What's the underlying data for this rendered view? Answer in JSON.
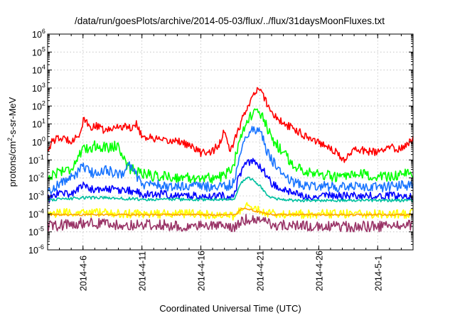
{
  "chart_data": {
    "type": "line",
    "title": "/data/run/goesPlots/archive/2014-05-03/flux/../flux/31daysMoonFluxes.txt",
    "xlabel": "Coordinated Universal Time (UTC)",
    "ylabel_prefix": "protons/cm",
    "ylabel_sup": "2",
    "ylabel_suffix": "-s-sr-MeV",
    "yscale": "log",
    "ylim_exp": [
      -6,
      6
    ],
    "xlim_days": [
      0,
      31
    ],
    "grid": true,
    "y_ticks": [
      {
        "base": "10",
        "exp": "6",
        "value_exp": 6
      },
      {
        "base": "10",
        "exp": "5",
        "value_exp": 5
      },
      {
        "base": "10",
        "exp": "4",
        "value_exp": 4
      },
      {
        "base": "10",
        "exp": "3",
        "value_exp": 3
      },
      {
        "base": "10",
        "exp": "2",
        "value_exp": 2
      },
      {
        "base": "10",
        "exp": "1",
        "value_exp": 1
      },
      {
        "base": "10",
        "exp": "0",
        "value_exp": 0
      },
      {
        "base": "10",
        "exp": "-1",
        "value_exp": -1
      },
      {
        "base": "10",
        "exp": "-2",
        "value_exp": -2
      },
      {
        "base": "10",
        "exp": "-3",
        "value_exp": -3
      },
      {
        "base": "10",
        "exp": "-4",
        "value_exp": -4
      },
      {
        "base": "10",
        "exp": "-5",
        "value_exp": -5
      },
      {
        "base": "10",
        "exp": "-6",
        "value_exp": -6
      }
    ],
    "x_ticks": [
      {
        "label": "2014-4-6",
        "day": 3
      },
      {
        "label": "2014-4-11",
        "day": 8
      },
      {
        "label": "2014-4-16",
        "day": 13
      },
      {
        "label": "2014-4-21",
        "day": 18
      },
      {
        "label": "2014-4-26",
        "day": 23
      },
      {
        "label": "2014-5-1",
        "day": 28
      }
    ],
    "series": [
      {
        "name": "red",
        "color": "#ff0000",
        "noise": 0.22,
        "points": [
          [
            0,
            -0.4
          ],
          [
            0.5,
            0.1
          ],
          [
            1,
            0.2
          ],
          [
            2,
            0.1
          ],
          [
            2.7,
            0.4
          ],
          [
            3.1,
            1.3
          ],
          [
            3.5,
            0.8
          ],
          [
            4,
            0.9
          ],
          [
            5,
            0.6
          ],
          [
            6,
            0.9
          ],
          [
            7,
            0.8
          ],
          [
            7.6,
            1.0
          ],
          [
            8,
            0.3
          ],
          [
            9,
            0.2
          ],
          [
            10,
            0.0
          ],
          [
            11,
            0.1
          ],
          [
            12,
            -0.2
          ],
          [
            13,
            -0.6
          ],
          [
            14,
            -0.5
          ],
          [
            14.6,
            -0.1
          ],
          [
            15,
            0.6
          ],
          [
            15.3,
            -0.2
          ],
          [
            15.6,
            -0.5
          ],
          [
            16,
            0.4
          ],
          [
            16.4,
            1.0
          ],
          [
            16.8,
            1.8
          ],
          [
            17.2,
            2.3
          ],
          [
            17.6,
            2.7
          ],
          [
            18,
            2.95
          ],
          [
            18.3,
            2.6
          ],
          [
            18.7,
            2.0
          ],
          [
            19.2,
            1.5
          ],
          [
            20,
            1.0
          ],
          [
            21,
            0.7
          ],
          [
            22,
            0.3
          ],
          [
            23,
            0.0
          ],
          [
            24,
            -0.3
          ],
          [
            24.8,
            -0.8
          ],
          [
            25.2,
            -1.1
          ],
          [
            25.6,
            -0.6
          ],
          [
            26,
            -0.4
          ],
          [
            27,
            -0.5
          ],
          [
            28,
            -0.6
          ],
          [
            29,
            -0.3
          ],
          [
            30,
            -0.4
          ],
          [
            31,
            0.2
          ]
        ]
      },
      {
        "name": "green",
        "color": "#00ff00",
        "noise": 0.3,
        "points": [
          [
            0,
            -2.0
          ],
          [
            1,
            -1.6
          ],
          [
            2,
            -1.5
          ],
          [
            2.6,
            -0.8
          ],
          [
            3,
            -0.5
          ],
          [
            4,
            -0.2
          ],
          [
            5,
            -0.3
          ],
          [
            6,
            -0.2
          ],
          [
            6.5,
            -1.0
          ],
          [
            7,
            -1.5
          ],
          [
            8,
            -1.7
          ],
          [
            9,
            -1.9
          ],
          [
            10,
            -1.9
          ],
          [
            11,
            -2.0
          ],
          [
            12,
            -2.0
          ],
          [
            13,
            -2.0
          ],
          [
            14,
            -2.0
          ],
          [
            15,
            -1.9
          ],
          [
            15.8,
            -1.3
          ],
          [
            16.2,
            0.0
          ],
          [
            16.6,
            0.8
          ],
          [
            17,
            1.2
          ],
          [
            17.4,
            1.6
          ],
          [
            17.8,
            1.65
          ],
          [
            18.2,
            1.4
          ],
          [
            18.6,
            0.8
          ],
          [
            19,
            0.2
          ],
          [
            20,
            -0.6
          ],
          [
            21,
            -1.4
          ],
          [
            22,
            -1.6
          ],
          [
            23,
            -1.8
          ],
          [
            24,
            -1.9
          ],
          [
            25,
            -2.0
          ],
          [
            26,
            -1.9
          ],
          [
            27,
            -1.8
          ],
          [
            28,
            -2.0
          ],
          [
            29,
            -1.9
          ],
          [
            30,
            -1.8
          ],
          [
            31,
            -1.8
          ]
        ]
      },
      {
        "name": "blue",
        "color": "#1874ff",
        "noise": 0.28,
        "points": [
          [
            0,
            -2.8
          ],
          [
            1,
            -2.3
          ],
          [
            2,
            -2.0
          ],
          [
            3,
            -1.4
          ],
          [
            4,
            -1.8
          ],
          [
            5,
            -1.5
          ],
          [
            6,
            -1.9
          ],
          [
            7,
            -1.3
          ],
          [
            7.5,
            -1.8
          ],
          [
            8,
            -2.4
          ],
          [
            9,
            -2.3
          ],
          [
            10,
            -2.5
          ],
          [
            11,
            -2.5
          ],
          [
            12,
            -2.4
          ],
          [
            13,
            -2.5
          ],
          [
            14,
            -2.5
          ],
          [
            15,
            -2.5
          ],
          [
            15.8,
            -2.3
          ],
          [
            16.2,
            -1.0
          ],
          [
            16.6,
            0.0
          ],
          [
            17,
            0.5
          ],
          [
            17.4,
            0.75
          ],
          [
            17.8,
            0.7
          ],
          [
            18.2,
            0.3
          ],
          [
            18.6,
            -0.5
          ],
          [
            19,
            -1.0
          ],
          [
            20,
            -1.8
          ],
          [
            21,
            -2.3
          ],
          [
            22,
            -2.4
          ],
          [
            23,
            -2.4
          ],
          [
            24,
            -2.5
          ],
          [
            25,
            -2.5
          ],
          [
            26,
            -2.5
          ],
          [
            27,
            -2.5
          ],
          [
            28,
            -2.5
          ],
          [
            29,
            -2.5
          ],
          [
            30,
            -2.4
          ],
          [
            31,
            -2.4
          ]
        ]
      },
      {
        "name": "darkblue",
        "color": "#0000ff",
        "noise": 0.22,
        "points": [
          [
            0,
            -3.2
          ],
          [
            1,
            -2.8
          ],
          [
            2,
            -2.9
          ],
          [
            3,
            -2.4
          ],
          [
            4,
            -2.7
          ],
          [
            5,
            -2.6
          ],
          [
            6,
            -2.7
          ],
          [
            7,
            -2.7
          ],
          [
            8,
            -2.9
          ],
          [
            9,
            -2.9
          ],
          [
            10,
            -2.9
          ],
          [
            11,
            -3.0
          ],
          [
            12,
            -3.0
          ],
          [
            13,
            -3.0
          ],
          [
            14,
            -3.0
          ],
          [
            15,
            -3.0
          ],
          [
            15.8,
            -3.0
          ],
          [
            16.2,
            -2.0
          ],
          [
            16.6,
            -1.4
          ],
          [
            17,
            -1.2
          ],
          [
            17.4,
            -1.1
          ],
          [
            17.8,
            -1.2
          ],
          [
            18.2,
            -1.5
          ],
          [
            18.6,
            -1.9
          ],
          [
            19,
            -2.3
          ],
          [
            20,
            -2.7
          ],
          [
            21,
            -2.9
          ],
          [
            22,
            -3.0
          ],
          [
            23,
            -3.0
          ],
          [
            24,
            -3.0
          ],
          [
            25,
            -3.0
          ],
          [
            26,
            -3.0
          ],
          [
            27,
            -3.0
          ],
          [
            28,
            -3.0
          ],
          [
            29,
            -3.0
          ],
          [
            30,
            -3.0
          ],
          [
            31,
            -3.0
          ]
        ]
      },
      {
        "name": "teal",
        "color": "#00c0a0",
        "noise": 0.08,
        "points": [
          [
            0,
            -3.2
          ],
          [
            1,
            -3.2
          ],
          [
            2,
            -3.15
          ],
          [
            3,
            -3.1
          ],
          [
            4,
            -3.1
          ],
          [
            5,
            -3.1
          ],
          [
            6,
            -3.15
          ],
          [
            7,
            -3.15
          ],
          [
            8,
            -3.2
          ],
          [
            9,
            -3.2
          ],
          [
            10,
            -3.2
          ],
          [
            11,
            -3.2
          ],
          [
            12,
            -3.2
          ],
          [
            13,
            -3.2
          ],
          [
            14,
            -3.2
          ],
          [
            15,
            -3.2
          ],
          [
            15.8,
            -3.2
          ],
          [
            16.2,
            -2.6
          ],
          [
            16.6,
            -2.1
          ],
          [
            17,
            -2.0
          ],
          [
            17.4,
            -2.1
          ],
          [
            17.8,
            -2.3
          ],
          [
            18.2,
            -2.6
          ],
          [
            18.6,
            -2.9
          ],
          [
            19,
            -3.1
          ],
          [
            20,
            -3.2
          ],
          [
            21,
            -3.25
          ],
          [
            22,
            -3.25
          ],
          [
            23,
            -3.25
          ],
          [
            24,
            -3.25
          ],
          [
            25,
            -3.25
          ],
          [
            26,
            -3.25
          ],
          [
            27,
            -3.25
          ],
          [
            28,
            -3.25
          ],
          [
            29,
            -3.25
          ],
          [
            30,
            -3.25
          ],
          [
            31,
            -3.25
          ]
        ]
      },
      {
        "name": "yellow",
        "color": "#ffff00",
        "noise": 0.25,
        "points": [
          [
            0,
            -4.0
          ],
          [
            3,
            -3.9
          ],
          [
            6,
            -4.0
          ],
          [
            9,
            -4.0
          ],
          [
            12,
            -4.0
          ],
          [
            15,
            -4.1
          ],
          [
            16,
            -4.1
          ],
          [
            16.4,
            -3.7
          ],
          [
            17,
            -3.6
          ],
          [
            18,
            -3.8
          ],
          [
            19,
            -4.0
          ],
          [
            22,
            -4.0
          ],
          [
            25,
            -4.0
          ],
          [
            28,
            -4.0
          ],
          [
            31,
            -4.0
          ]
        ]
      },
      {
        "name": "orange",
        "color": "#ffa500",
        "noise": 0.05,
        "points": [
          [
            0,
            -4.05
          ],
          [
            16,
            -4.05
          ],
          [
            16.4,
            -3.7
          ],
          [
            17,
            -3.75
          ],
          [
            18,
            -3.9
          ],
          [
            19,
            -4.05
          ],
          [
            31,
            -4.05
          ]
        ]
      },
      {
        "name": "purple",
        "color": "#993366",
        "noise": 0.3,
        "points": [
          [
            0,
            -4.7
          ],
          [
            3,
            -4.5
          ],
          [
            6,
            -4.6
          ],
          [
            9,
            -4.6
          ],
          [
            12,
            -4.7
          ],
          [
            15,
            -4.7
          ],
          [
            16,
            -4.7
          ],
          [
            16.4,
            -4.4
          ],
          [
            17,
            -4.3
          ],
          [
            18,
            -4.4
          ],
          [
            19,
            -4.6
          ],
          [
            22,
            -4.7
          ],
          [
            25,
            -4.7
          ],
          [
            28,
            -4.7
          ],
          [
            31,
            -4.6
          ]
        ]
      }
    ]
  }
}
